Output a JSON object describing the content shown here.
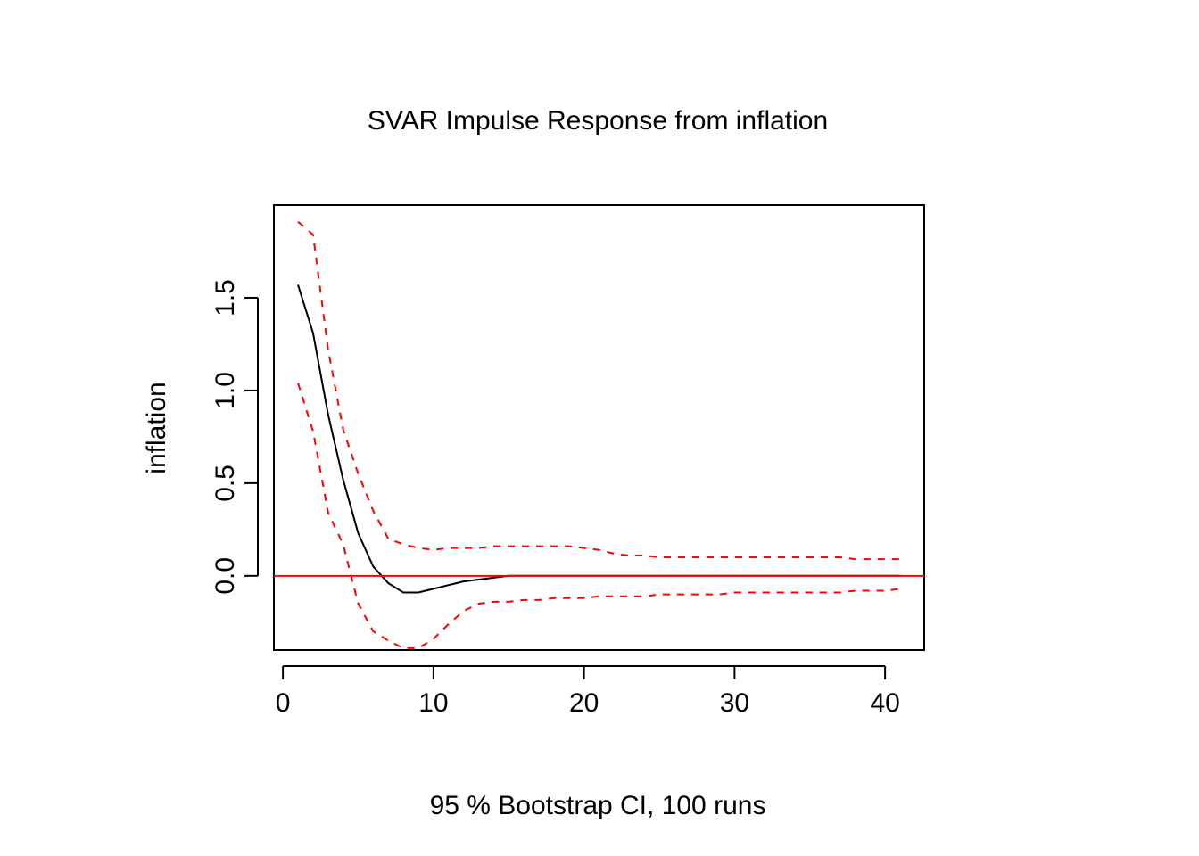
{
  "chart_data": {
    "type": "line",
    "title": "SVAR Impulse Response from inflation",
    "xlabel": "95 % Bootstrap CI,  100 runs",
    "ylabel": "inflation",
    "xlim": [
      -0.6,
      42.6
    ],
    "ylim": [
      -0.4,
      2.0
    ],
    "x_ticks": [
      0,
      10,
      20,
      30,
      40
    ],
    "x_tick_labels": [
      "0",
      "10",
      "20",
      "30",
      "40"
    ],
    "y_ticks": [
      0.0,
      0.5,
      1.0,
      1.5
    ],
    "y_tick_labels": [
      "0.0",
      "0.5",
      "1.0",
      "1.5"
    ],
    "grid": false,
    "legend": "none",
    "zero_line": {
      "y": 0,
      "color": "#ff0000"
    },
    "x": [
      1,
      2,
      3,
      4,
      5,
      6,
      7,
      8,
      9,
      10,
      11,
      12,
      13,
      14,
      15,
      16,
      17,
      18,
      19,
      20,
      21,
      22,
      23,
      24,
      25,
      26,
      27,
      28,
      29,
      30,
      31,
      32,
      33,
      34,
      35,
      36,
      37,
      38,
      39,
      40,
      41
    ],
    "series": [
      {
        "role": "response",
        "color": "#000000",
        "dash": "solid",
        "values": [
          1.57,
          1.31,
          0.87,
          0.52,
          0.23,
          0.05,
          -0.04,
          -0.09,
          -0.09,
          -0.07,
          -0.05,
          -0.03,
          -0.02,
          -0.01,
          0.0,
          0.0,
          0.0,
          0.0,
          0.0,
          0.0,
          0.0,
          0.0,
          0.0,
          0.0,
          0.0,
          0.0,
          0.0,
          0.0,
          0.0,
          0.0,
          0.0,
          0.0,
          0.0,
          0.0,
          0.0,
          0.0,
          0.0,
          0.0,
          0.0,
          0.0,
          0.0
        ]
      },
      {
        "role": "upper",
        "color": "#ff0000",
        "dash": "dashed",
        "values": [
          1.91,
          1.84,
          1.22,
          0.79,
          0.55,
          0.35,
          0.2,
          0.17,
          0.15,
          0.14,
          0.15,
          0.15,
          0.15,
          0.16,
          0.16,
          0.16,
          0.16,
          0.16,
          0.16,
          0.15,
          0.14,
          0.12,
          0.11,
          0.11,
          0.1,
          0.1,
          0.1,
          0.1,
          0.1,
          0.1,
          0.1,
          0.1,
          0.1,
          0.1,
          0.1,
          0.1,
          0.1,
          0.09,
          0.09,
          0.09,
          0.09
        ]
      },
      {
        "role": "lower",
        "color": "#ff0000",
        "dash": "dashed",
        "values": [
          1.04,
          0.78,
          0.34,
          0.17,
          -0.15,
          -0.3,
          -0.35,
          -0.39,
          -0.39,
          -0.34,
          -0.26,
          -0.19,
          -0.15,
          -0.14,
          -0.14,
          -0.13,
          -0.13,
          -0.12,
          -0.12,
          -0.12,
          -0.11,
          -0.11,
          -0.11,
          -0.11,
          -0.1,
          -0.1,
          -0.1,
          -0.1,
          -0.1,
          -0.09,
          -0.09,
          -0.09,
          -0.09,
          -0.09,
          -0.09,
          -0.09,
          -0.09,
          -0.08,
          -0.08,
          -0.08,
          -0.07
        ]
      }
    ]
  }
}
